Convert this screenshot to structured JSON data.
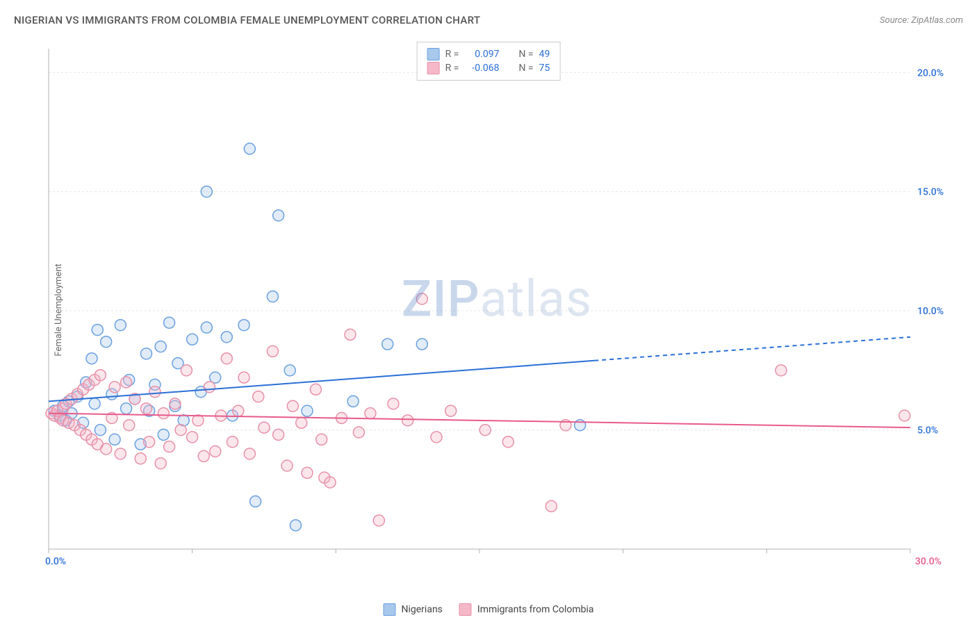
{
  "title": "NIGERIAN VS IMMIGRANTS FROM COLOMBIA FEMALE UNEMPLOYMENT CORRELATION CHART",
  "source": "Source: ZipAtlas.com",
  "y_axis_label": "Female Unemployment",
  "watermark_a": "ZIP",
  "watermark_b": "atlas",
  "chart": {
    "type": "scatter",
    "xlim": [
      0,
      30
    ],
    "ylim": [
      0,
      21
    ],
    "x_ticks": [
      0,
      5,
      10,
      15,
      20,
      25,
      30
    ],
    "x_tick_labels": {
      "0": "0.0%",
      "30": "30.0%"
    },
    "y_ticks": [
      5,
      10,
      15,
      20
    ],
    "y_tick_labels": {
      "5": "5.0%",
      "10": "10.0%",
      "15": "15.0%",
      "20": "20.0%"
    },
    "grid_color": "#e5e5e5",
    "axis_color": "#b0b0b0",
    "background_color": "#ffffff",
    "marker_radius": 8,
    "marker_stroke_width": 1.5,
    "marker_fill_opacity": 0.35,
    "series": [
      {
        "id": "nigerians",
        "label": "Nigerians",
        "color_stroke": "#6aa0e0",
        "color_fill": "#a8c8ec",
        "R": "0.097",
        "N": "49",
        "trend": {
          "y_at_x0": 6.2,
          "y_at_x30": 8.9,
          "solid_until_x": 19,
          "line_color": "#2a6fd6",
          "line_width": 2
        },
        "points": [
          [
            0.2,
            5.8
          ],
          [
            0.4,
            5.6
          ],
          [
            0.5,
            6.0
          ],
          [
            0.6,
            5.4
          ],
          [
            0.7,
            6.2
          ],
          [
            0.8,
            5.7
          ],
          [
            1.0,
            6.4
          ],
          [
            1.2,
            5.3
          ],
          [
            1.3,
            7.0
          ],
          [
            1.5,
            8.0
          ],
          [
            1.6,
            6.1
          ],
          [
            1.7,
            9.2
          ],
          [
            1.8,
            5.0
          ],
          [
            2.0,
            8.7
          ],
          [
            2.2,
            6.5
          ],
          [
            2.3,
            4.6
          ],
          [
            2.5,
            9.4
          ],
          [
            2.7,
            5.9
          ],
          [
            2.8,
            7.1
          ],
          [
            3.0,
            6.3
          ],
          [
            3.2,
            4.4
          ],
          [
            3.4,
            8.2
          ],
          [
            3.5,
            5.8
          ],
          [
            3.7,
            6.9
          ],
          [
            3.9,
            8.5
          ],
          [
            4.0,
            4.8
          ],
          [
            4.2,
            9.5
          ],
          [
            4.4,
            6.0
          ],
          [
            4.5,
            7.8
          ],
          [
            4.7,
            5.4
          ],
          [
            5.0,
            8.8
          ],
          [
            5.3,
            6.6
          ],
          [
            5.5,
            9.3
          ],
          [
            5.5,
            15.0
          ],
          [
            5.8,
            7.2
          ],
          [
            6.2,
            8.9
          ],
          [
            6.4,
            5.6
          ],
          [
            6.8,
            9.4
          ],
          [
            7.0,
            16.8
          ],
          [
            7.2,
            2.0
          ],
          [
            7.8,
            10.6
          ],
          [
            8.0,
            14.0
          ],
          [
            8.4,
            7.5
          ],
          [
            8.6,
            1.0
          ],
          [
            9.0,
            5.8
          ],
          [
            10.6,
            6.2
          ],
          [
            11.8,
            8.6
          ],
          [
            13.0,
            8.6
          ],
          [
            18.5,
            5.2
          ]
        ]
      },
      {
        "id": "colombia",
        "label": "Immigrants from Colombia",
        "color_stroke": "#e890a8",
        "color_fill": "#f4b8c8",
        "R": "-0.068",
        "N": "75",
        "trend": {
          "y_at_x0": 5.7,
          "y_at_x30": 5.1,
          "solid_until_x": 30,
          "line_color": "#e85a8a",
          "line_width": 2
        },
        "points": [
          [
            0.1,
            5.7
          ],
          [
            0.2,
            5.6
          ],
          [
            0.3,
            5.8
          ],
          [
            0.4,
            5.5
          ],
          [
            0.5,
            5.9
          ],
          [
            0.5,
            5.4
          ],
          [
            0.6,
            6.1
          ],
          [
            0.7,
            5.3
          ],
          [
            0.8,
            6.3
          ],
          [
            0.9,
            5.2
          ],
          [
            1.0,
            6.5
          ],
          [
            1.1,
            5.0
          ],
          [
            1.2,
            6.7
          ],
          [
            1.3,
            4.8
          ],
          [
            1.4,
            6.9
          ],
          [
            1.5,
            4.6
          ],
          [
            1.6,
            7.1
          ],
          [
            1.7,
            4.4
          ],
          [
            1.8,
            7.3
          ],
          [
            2.0,
            4.2
          ],
          [
            2.2,
            5.5
          ],
          [
            2.3,
            6.8
          ],
          [
            2.5,
            4.0
          ],
          [
            2.7,
            7.0
          ],
          [
            2.8,
            5.2
          ],
          [
            3.0,
            6.3
          ],
          [
            3.2,
            3.8
          ],
          [
            3.4,
            5.9
          ],
          [
            3.5,
            4.5
          ],
          [
            3.7,
            6.6
          ],
          [
            3.9,
            3.6
          ],
          [
            4.0,
            5.7
          ],
          [
            4.2,
            4.3
          ],
          [
            4.4,
            6.1
          ],
          [
            4.6,
            5.0
          ],
          [
            4.8,
            7.5
          ],
          [
            5.0,
            4.7
          ],
          [
            5.2,
            5.4
          ],
          [
            5.4,
            3.9
          ],
          [
            5.6,
            6.8
          ],
          [
            5.8,
            4.1
          ],
          [
            6.0,
            5.6
          ],
          [
            6.2,
            8.0
          ],
          [
            6.4,
            4.5
          ],
          [
            6.6,
            5.8
          ],
          [
            6.8,
            7.2
          ],
          [
            7.0,
            4.0
          ],
          [
            7.3,
            6.4
          ],
          [
            7.5,
            5.1
          ],
          [
            7.8,
            8.3
          ],
          [
            8.0,
            4.8
          ],
          [
            8.3,
            3.5
          ],
          [
            8.5,
            6.0
          ],
          [
            8.8,
            5.3
          ],
          [
            9.0,
            3.2
          ],
          [
            9.3,
            6.7
          ],
          [
            9.5,
            4.6
          ],
          [
            9.6,
            3.0
          ],
          [
            9.8,
            2.8
          ],
          [
            10.2,
            5.5
          ],
          [
            10.5,
            9.0
          ],
          [
            10.8,
            4.9
          ],
          [
            11.2,
            5.7
          ],
          [
            11.5,
            1.2
          ],
          [
            12.0,
            6.1
          ],
          [
            12.5,
            5.4
          ],
          [
            13.0,
            10.5
          ],
          [
            13.5,
            4.7
          ],
          [
            14.0,
            5.8
          ],
          [
            15.2,
            5.0
          ],
          [
            17.5,
            1.8
          ],
          [
            25.5,
            7.5
          ],
          [
            29.8,
            5.6
          ],
          [
            18.0,
            5.2
          ],
          [
            16.0,
            4.5
          ]
        ]
      }
    ]
  },
  "corr_box": {
    "r_label": "R =",
    "n_label": "N =",
    "value_color": "#2a6fd6",
    "label_color": "#666666"
  },
  "x_axis_end_label": "30.0%",
  "x_axis_start_label": "0.0%"
}
